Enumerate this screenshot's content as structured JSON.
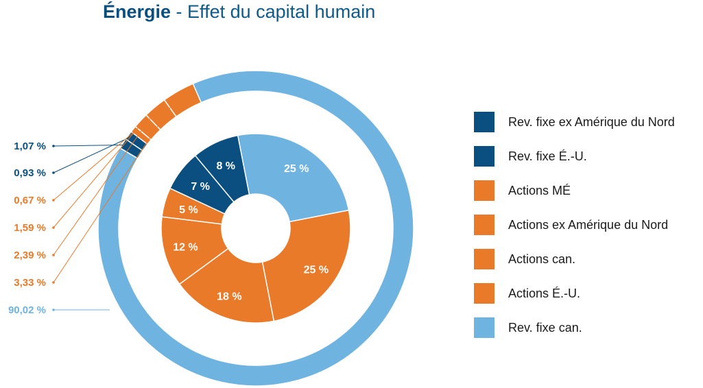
{
  "title": {
    "bold": "Énergie",
    "rest": " - Effet du capital humain"
  },
  "colors": {
    "navy": "#0a4f7f",
    "orange": "#e87a29",
    "light_blue": "#6fb3e0"
  },
  "chart_data": {
    "type": "pie",
    "subtype": "nested-donut",
    "outer_ring": [
      {
        "label": "1,07 %",
        "value": 1.07,
        "series": "Rev. fixe ex Amérique du Nord",
        "color": "#0a4f7f"
      },
      {
        "label": "0,93 %",
        "value": 0.93,
        "series": "Rev. fixe É.-U.",
        "color": "#0a4f7f"
      },
      {
        "label": "0,67 %",
        "value": 0.67,
        "series": "Actions MÉ",
        "color": "#e87a29"
      },
      {
        "label": "1,59 %",
        "value": 1.59,
        "series": "Actions ex Amérique du Nord",
        "color": "#e87a29"
      },
      {
        "label": "2,39 %",
        "value": 2.39,
        "series": "Actions can.",
        "color": "#e87a29"
      },
      {
        "label": "3,33 %",
        "value": 3.33,
        "series": "Actions É.-U.",
        "color": "#e87a29"
      },
      {
        "label": "90,02 %",
        "value": 90.02,
        "series": "Rev. fixe can.",
        "color": "#6fb3e0"
      }
    ],
    "inner_ring": [
      {
        "label": "25 %",
        "value": 25,
        "series": "Rev. fixe can.",
        "color": "#6fb3e0"
      },
      {
        "label": "25 %",
        "value": 25,
        "series": "Actions É.-U.",
        "color": "#e87a29"
      },
      {
        "label": "18 %",
        "value": 18,
        "series": "Actions can.",
        "color": "#e87a29"
      },
      {
        "label": "12 %",
        "value": 12,
        "series": "Actions ex Amérique du Nord",
        "color": "#e87a29"
      },
      {
        "label": "5 %",
        "value": 5,
        "series": "Actions MÉ",
        "color": "#e87a29"
      },
      {
        "label": "7 %",
        "value": 7,
        "series": "Rev. fixe É.-U.",
        "color": "#0a4f7f"
      },
      {
        "label": "8 %",
        "value": 8,
        "series": "Rev. fixe ex Amérique du Nord",
        "color": "#0a4f7f"
      }
    ],
    "legend": {
      "placement": "right",
      "items": [
        {
          "label": "Rev. fixe ex Amérique du Nord",
          "color": "#0a4f7f"
        },
        {
          "label": "Rev. fixe É.-U.",
          "color": "#0a4f7f"
        },
        {
          "label": "Actions MÉ",
          "color": "#e87a29"
        },
        {
          "label": "Actions ex Amérique du Nord",
          "color": "#e87a29"
        },
        {
          "label": "Actions can.",
          "color": "#e87a29"
        },
        {
          "label": "Actions É.-U.",
          "color": "#e87a29"
        },
        {
          "label": "Rev. fixe can.",
          "color": "#6fb3e0"
        }
      ]
    }
  }
}
